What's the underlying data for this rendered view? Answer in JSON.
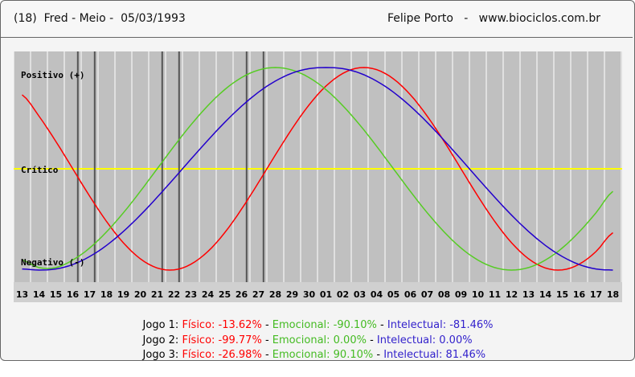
{
  "header": {
    "left": "(18)  Fred - Meio -  05/03/1993",
    "right": "Felipe Porto   -   www.biociclos.com.br"
  },
  "colors": {
    "background_chart": "#c0c0c0",
    "grid": "#ffffff",
    "critical_line": "#ffff00",
    "fisico": "#ff0000",
    "emocional": "#55cc22",
    "intelectual": "#2200cc",
    "marker": "#555555"
  },
  "chart_data": {
    "type": "line",
    "title": "",
    "xlabel": "",
    "ylabel": "",
    "ylim": [
      -100,
      100
    ],
    "categories": [
      "13",
      "14",
      "15",
      "16",
      "17",
      "18",
      "19",
      "20",
      "21",
      "22",
      "23",
      "24",
      "25",
      "26",
      "27",
      "28",
      "29",
      "30",
      "01",
      "02",
      "03",
      "04",
      "05",
      "06",
      "07",
      "08",
      "09",
      "10",
      "11",
      "12",
      "13",
      "14",
      "15",
      "16",
      "17",
      "18"
    ],
    "y_labels": {
      "top": "Positivo (+)",
      "middle": "Crítico",
      "bottom": "Negativo (-)"
    },
    "series": [
      {
        "name": "Físico",
        "color": "#ff0000",
        "values": [
          73.1,
          52.0,
          27.0,
          0.0,
          -27.0,
          -52.0,
          -73.1,
          -88.8,
          -97.9,
          -99.8,
          -94.2,
          -81.7,
          -63.1,
          -39.8,
          -13.6,
          13.6,
          39.8,
          63.1,
          81.7,
          94.2,
          99.8,
          97.9,
          88.8,
          73.1,
          52.0,
          27.0,
          0.0,
          -27.0,
          -52.0,
          -73.1,
          -88.8,
          -97.9,
          -99.8,
          -94.2,
          -81.7,
          -63.1
        ]
      },
      {
        "name": "Emocional",
        "color": "#55cc22",
        "values": [
          -90.1,
          -97.5,
          -97.5,
          -90.1,
          -78.2,
          -62.3,
          -43.4,
          -22.3,
          0.0,
          22.3,
          43.4,
          62.3,
          78.2,
          90.1,
          97.5,
          100.0,
          97.5,
          90.1,
          78.2,
          62.3,
          43.4,
          22.3,
          0.0,
          -22.3,
          -43.4,
          -62.3,
          -78.2,
          -90.1,
          -97.5,
          -100.0,
          -97.5,
          -90.1,
          -78.2,
          -62.3,
          -43.4,
          -22.3
        ]
      },
      {
        "name": "Intelectual",
        "color": "#2200cc",
        "values": [
          -98.9,
          -100.0,
          -98.9,
          -94.5,
          -86.6,
          -75.6,
          -61.8,
          -45.8,
          -28.1,
          -9.5,
          9.5,
          28.1,
          45.8,
          61.8,
          75.6,
          86.6,
          94.5,
          98.9,
          100.0,
          98.9,
          94.5,
          86.6,
          75.6,
          61.8,
          45.8,
          28.1,
          9.5,
          -9.5,
          -28.1,
          -45.8,
          -61.8,
          -75.6,
          -86.6,
          -94.5,
          -98.9,
          -100.0
        ]
      }
    ],
    "markers_at_days": [
      3.8,
      4.8,
      8.8,
      9.8,
      13.8,
      14.8
    ],
    "grid": true
  },
  "summary": [
    {
      "label": "Jogo 1:",
      "fisico": "Físico: -13.62%",
      "emocional": "Emocional: -90.10%",
      "intelectual": "Intelectual: -81.46%"
    },
    {
      "label": "Jogo 2:",
      "fisico": "Físico: -99.77%",
      "emocional": "Emocional: 0.00%",
      "intelectual": "Intelectual: 0.00%"
    },
    {
      "label": "Jogo 3:",
      "fisico": "Físico: -26.98%",
      "emocional": "Emocional: 90.10%",
      "intelectual": "Intelectual: 81.46%"
    }
  ],
  "separator": " - "
}
